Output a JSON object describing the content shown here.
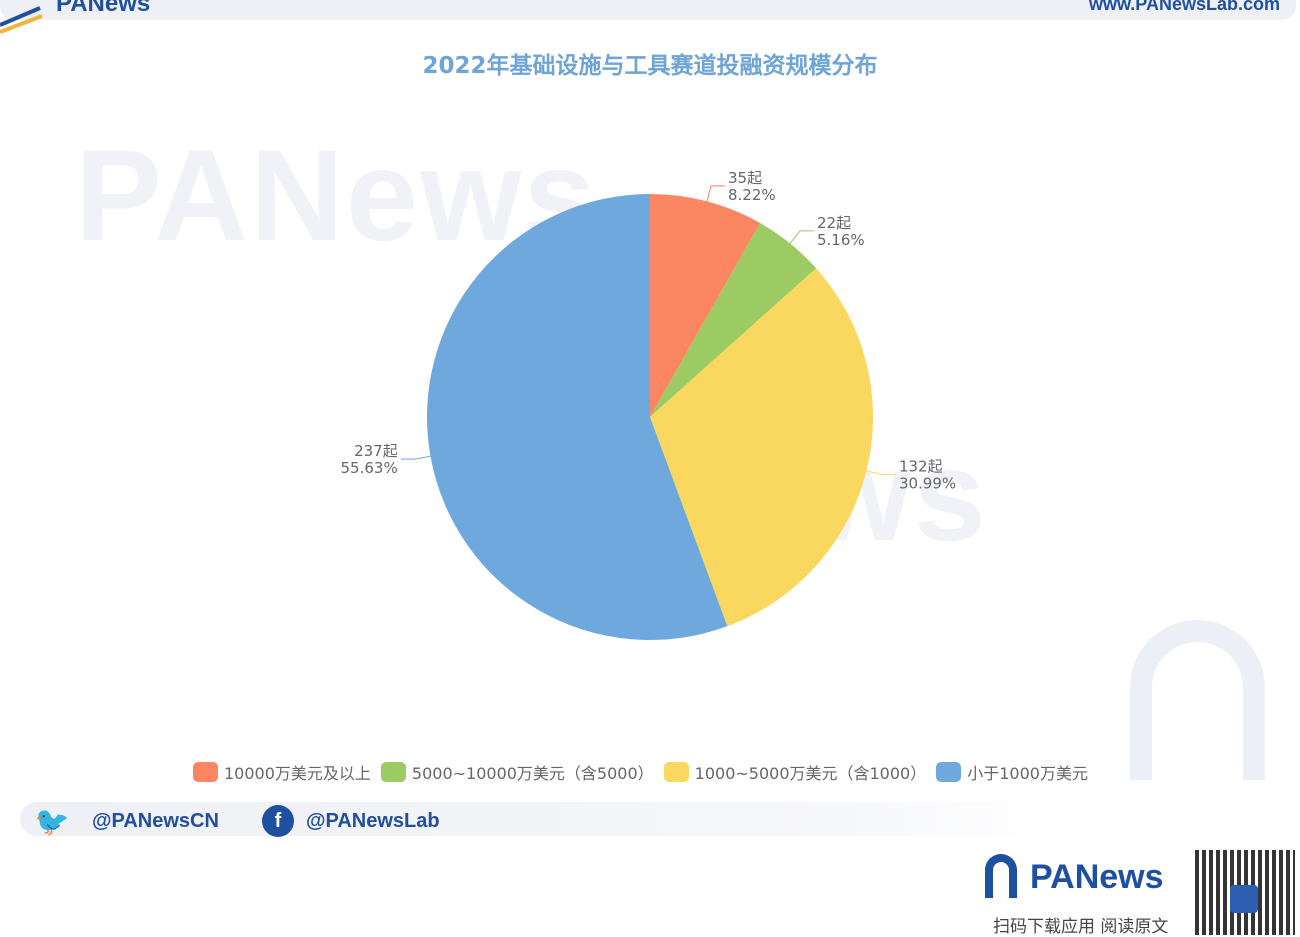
{
  "header": {
    "brand": "PANews",
    "url": "www.PANewsLab.com"
  },
  "watermark": "PANews",
  "chart_data": {
    "type": "pie",
    "title": "2022年基础设施与工具赛道投融资规模分布",
    "categories": [
      "10000万美元及以上",
      "5000~10000万美元（含5000）",
      "1000~5000万美元（含1000）",
      "小于1000万美元"
    ],
    "values": [
      35,
      22,
      132,
      237
    ],
    "labels": [
      {
        "count": "35起",
        "percent": "8.22%"
      },
      {
        "count": "22起",
        "percent": "5.16%"
      },
      {
        "count": "132起",
        "percent": "30.99%"
      },
      {
        "count": "237起",
        "percent": "55.63%"
      }
    ],
    "colors": [
      "#fc8562",
      "#9cca63",
      "#fad860",
      "#6fa8dc"
    ],
    "legend_position": "bottom"
  },
  "footer": {
    "twitter": "@PANewsCN",
    "facebook": "@PANewsLab",
    "brand": "PANews",
    "cta": "扫码下载应用  阅读原文"
  }
}
